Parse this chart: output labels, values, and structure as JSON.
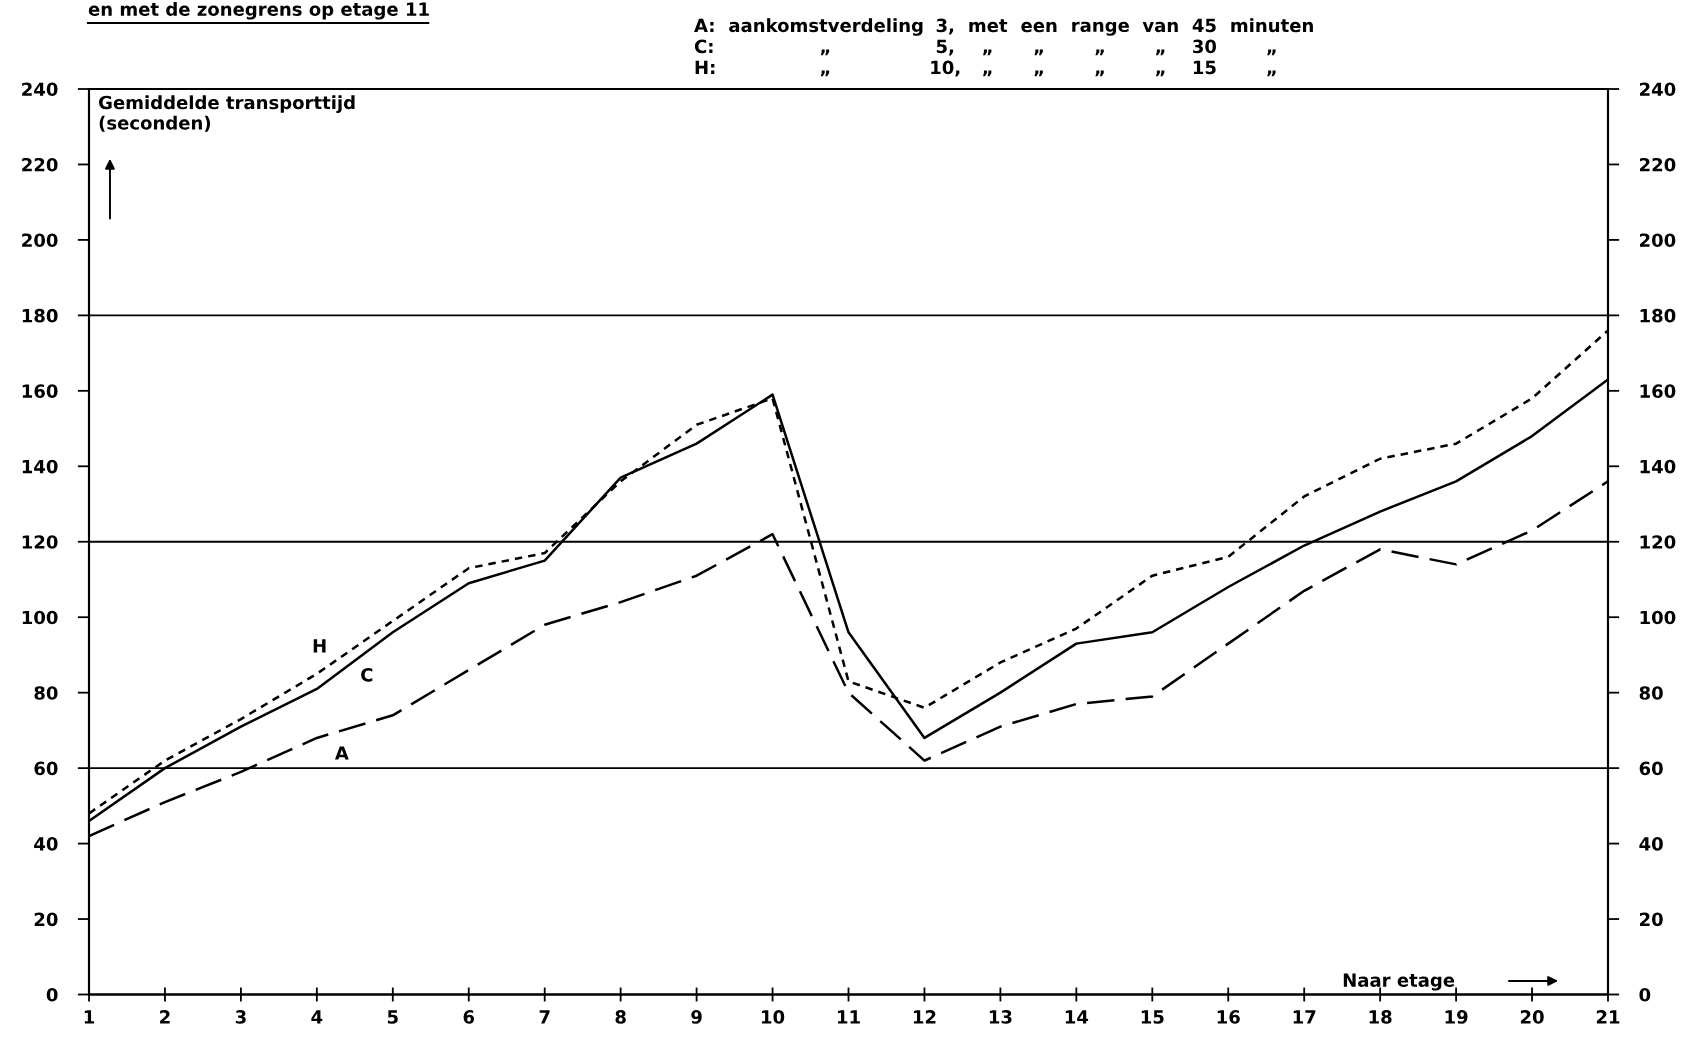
{
  "chart_data": {
    "type": "line",
    "title": "en met de zonegrens op etage 11",
    "ylabel": "Gemiddelde transporttijd\n(seconden)",
    "xlabel": "Naar etage",
    "annotations": [
      "A: aankomstverdeling 3, met een range van 45 minuten",
      "C: „ 5, „ „ „ „ 30 „",
      "H: „ 10, „ „ „ „ 15 „"
    ],
    "x": [
      1,
      2,
      3,
      4,
      5,
      6,
      7,
      8,
      9,
      10,
      11,
      12,
      13,
      14,
      15,
      16,
      17,
      18,
      19,
      20,
      21
    ],
    "series": [
      {
        "name": "A",
        "color": "#000000",
        "line_style": "dashed",
        "values": [
          42,
          51,
          59,
          68,
          74,
          86,
          98,
          104,
          111,
          122,
          80,
          62,
          71,
          77,
          79,
          93,
          107,
          118,
          114,
          123,
          136
        ]
      },
      {
        "name": "C",
        "color": "#000000",
        "line_style": "solid",
        "values": [
          46,
          60,
          71,
          81,
          96,
          109,
          115,
          137,
          146,
          159,
          96,
          68,
          80,
          93,
          96,
          108,
          119,
          128,
          136,
          148,
          163
        ]
      },
      {
        "name": "H",
        "color": "#000000",
        "line_style": "dotted",
        "values": [
          48,
          62,
          73,
          85,
          99,
          113,
          117,
          136,
          151,
          158,
          83,
          76,
          88,
          97,
          111,
          116,
          132,
          142,
          146,
          158,
          176
        ]
      }
    ],
    "xlim": [
      1,
      21
    ],
    "xticks": [
      1,
      2,
      3,
      4,
      5,
      6,
      7,
      8,
      9,
      10,
      11,
      12,
      13,
      14,
      15,
      16,
      17,
      18,
      19,
      20,
      21
    ],
    "ylim": [
      0,
      240
    ],
    "yticks": [
      0,
      20,
      40,
      60,
      80,
      100,
      120,
      140,
      160,
      180,
      200,
      220,
      240
    ],
    "y2lim": [
      0,
      240
    ],
    "y2ticks": [
      0,
      20,
      40,
      60,
      80,
      100,
      120,
      140,
      160,
      180,
      200,
      220,
      240
    ],
    "ref_lines": [
      {
        "axis": "y",
        "value": 60,
        "color": "#000000"
      },
      {
        "axis": "y",
        "value": 120,
        "color": "#000000"
      },
      {
        "axis": "y",
        "value": 180,
        "color": "#000000"
      }
    ]
  }
}
